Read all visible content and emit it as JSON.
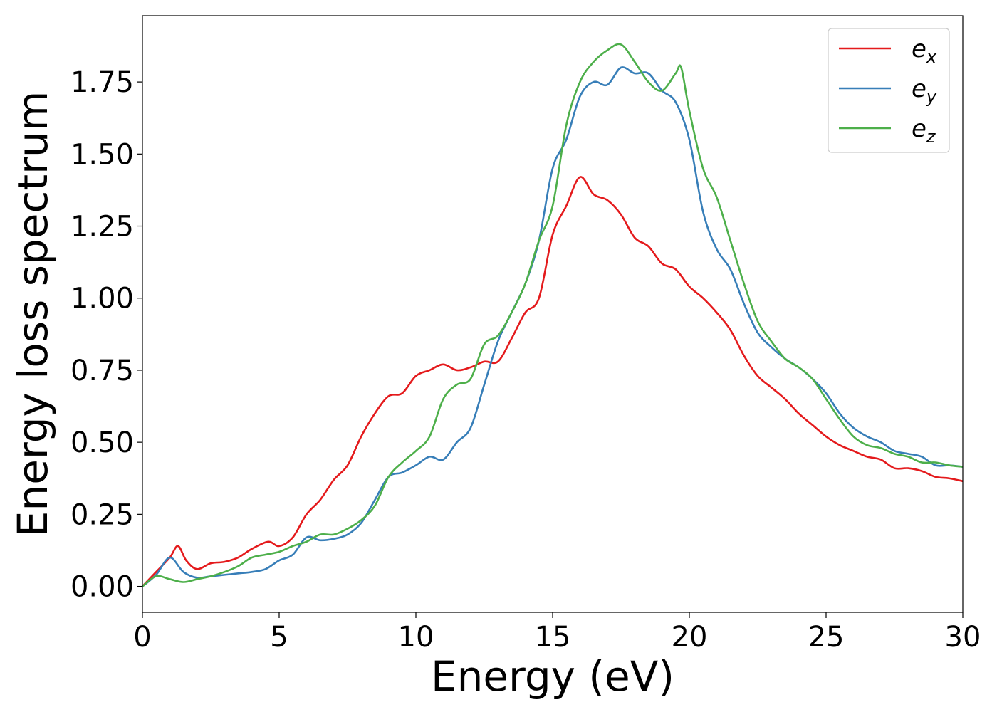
{
  "chart_data": {
    "type": "line",
    "title": "",
    "xlabel": "Energy (eV)",
    "ylabel": "Energy loss spectrum",
    "xlim": [
      0,
      30
    ],
    "ylim": [
      -0.09,
      1.98
    ],
    "xticks": [
      0,
      5,
      10,
      15,
      20,
      25,
      30
    ],
    "xtick_labels": [
      "0",
      "5",
      "10",
      "15",
      "20",
      "25",
      "30"
    ],
    "yticks": [
      0.0,
      0.25,
      0.5,
      0.75,
      1.0,
      1.25,
      1.5,
      1.75
    ],
    "ytick_labels": [
      "0.00",
      "0.25",
      "0.50",
      "0.75",
      "1.00",
      "1.25",
      "1.50",
      "1.75"
    ],
    "grid": false,
    "legend_position": "top-right",
    "series": [
      {
        "name": "e_x",
        "label_base": "e",
        "label_sub": "x",
        "color": "#e41a1c",
        "x": [
          0,
          0.5,
          1.0,
          1.3,
          1.6,
          2.0,
          2.5,
          3.0,
          3.5,
          4.0,
          4.6,
          5.0,
          5.5,
          6.0,
          6.5,
          7.0,
          7.5,
          8.0,
          8.5,
          9.0,
          9.5,
          10.0,
          10.5,
          11.0,
          11.5,
          12.0,
          12.5,
          13.0,
          13.5,
          14.0,
          14.5,
          15.0,
          15.5,
          16.0,
          16.5,
          17.0,
          17.5,
          18.0,
          18.5,
          19.0,
          19.5,
          20.0,
          20.5,
          21.0,
          21.5,
          22.0,
          22.5,
          23.0,
          23.5,
          24.0,
          24.5,
          25.0,
          25.5,
          26.0,
          26.5,
          27.0,
          27.5,
          28.0,
          28.5,
          29.0,
          29.5,
          30.0
        ],
        "values": [
          0.0,
          0.05,
          0.1,
          0.14,
          0.09,
          0.06,
          0.08,
          0.085,
          0.1,
          0.13,
          0.155,
          0.14,
          0.17,
          0.25,
          0.3,
          0.37,
          0.42,
          0.52,
          0.6,
          0.66,
          0.67,
          0.73,
          0.75,
          0.77,
          0.75,
          0.76,
          0.78,
          0.78,
          0.86,
          0.95,
          1.0,
          1.22,
          1.32,
          1.42,
          1.36,
          1.34,
          1.29,
          1.21,
          1.18,
          1.12,
          1.1,
          1.04,
          1.0,
          0.95,
          0.89,
          0.8,
          0.73,
          0.69,
          0.65,
          0.6,
          0.56,
          0.52,
          0.49,
          0.47,
          0.45,
          0.44,
          0.41,
          0.41,
          0.4,
          0.38,
          0.375,
          0.365
        ]
      },
      {
        "name": "e_y",
        "label_base": "e",
        "label_sub": "y",
        "color": "#377eb8",
        "x": [
          0,
          0.5,
          1.0,
          1.5,
          2.0,
          2.5,
          3.0,
          3.5,
          4.0,
          4.5,
          5.0,
          5.5,
          6.0,
          6.5,
          7.0,
          7.5,
          8.0,
          8.5,
          9.0,
          9.5,
          10.0,
          10.5,
          11.0,
          11.5,
          12.0,
          12.5,
          13.0,
          13.5,
          14.0,
          14.5,
          15.0,
          15.5,
          16.0,
          16.5,
          17.0,
          17.5,
          18.0,
          18.5,
          19.0,
          19.5,
          20.0,
          20.5,
          21.0,
          21.5,
          22.0,
          22.5,
          23.0,
          23.5,
          24.0,
          24.5,
          25.0,
          25.5,
          26.0,
          26.5,
          27.0,
          27.5,
          28.0,
          28.5,
          29.0,
          29.5,
          30.0
        ],
        "values": [
          0.0,
          0.04,
          0.1,
          0.05,
          0.03,
          0.035,
          0.04,
          0.045,
          0.05,
          0.06,
          0.09,
          0.11,
          0.17,
          0.16,
          0.165,
          0.18,
          0.22,
          0.3,
          0.38,
          0.395,
          0.42,
          0.45,
          0.44,
          0.5,
          0.55,
          0.7,
          0.85,
          0.95,
          1.05,
          1.2,
          1.45,
          1.55,
          1.7,
          1.75,
          1.74,
          1.8,
          1.78,
          1.78,
          1.72,
          1.68,
          1.55,
          1.3,
          1.17,
          1.1,
          0.98,
          0.88,
          0.83,
          0.79,
          0.76,
          0.72,
          0.67,
          0.6,
          0.55,
          0.52,
          0.5,
          0.47,
          0.46,
          0.45,
          0.42,
          0.42,
          0.415
        ]
      },
      {
        "name": "e_z",
        "label_base": "e",
        "label_sub": "z",
        "color": "#4daf4a",
        "x": [
          0,
          0.5,
          1.0,
          1.5,
          2.0,
          2.5,
          3.0,
          3.5,
          4.0,
          4.5,
          5.0,
          5.5,
          6.0,
          6.5,
          7.0,
          7.5,
          8.0,
          8.5,
          9.0,
          9.5,
          10.0,
          10.5,
          11.0,
          11.5,
          12.0,
          12.5,
          13.0,
          13.5,
          14.0,
          14.5,
          15.0,
          15.5,
          16.0,
          16.5,
          17.0,
          17.5,
          18.0,
          18.5,
          19.0,
          19.5,
          19.7,
          20.0,
          20.5,
          21.0,
          21.5,
          22.0,
          22.5,
          23.0,
          23.5,
          24.0,
          24.5,
          25.0,
          25.5,
          26.0,
          26.5,
          27.0,
          27.5,
          28.0,
          28.5,
          29.0,
          29.5,
          30.0
        ],
        "values": [
          0.0,
          0.035,
          0.025,
          0.015,
          0.025,
          0.035,
          0.05,
          0.07,
          0.1,
          0.11,
          0.12,
          0.14,
          0.155,
          0.18,
          0.18,
          0.2,
          0.23,
          0.28,
          0.38,
          0.43,
          0.47,
          0.52,
          0.65,
          0.7,
          0.72,
          0.84,
          0.87,
          0.95,
          1.05,
          1.2,
          1.32,
          1.6,
          1.75,
          1.82,
          1.86,
          1.88,
          1.82,
          1.75,
          1.72,
          1.78,
          1.8,
          1.65,
          1.45,
          1.35,
          1.2,
          1.05,
          0.92,
          0.85,
          0.79,
          0.76,
          0.72,
          0.65,
          0.58,
          0.52,
          0.49,
          0.48,
          0.46,
          0.45,
          0.43,
          0.43,
          0.42,
          0.415
        ]
      }
    ]
  }
}
